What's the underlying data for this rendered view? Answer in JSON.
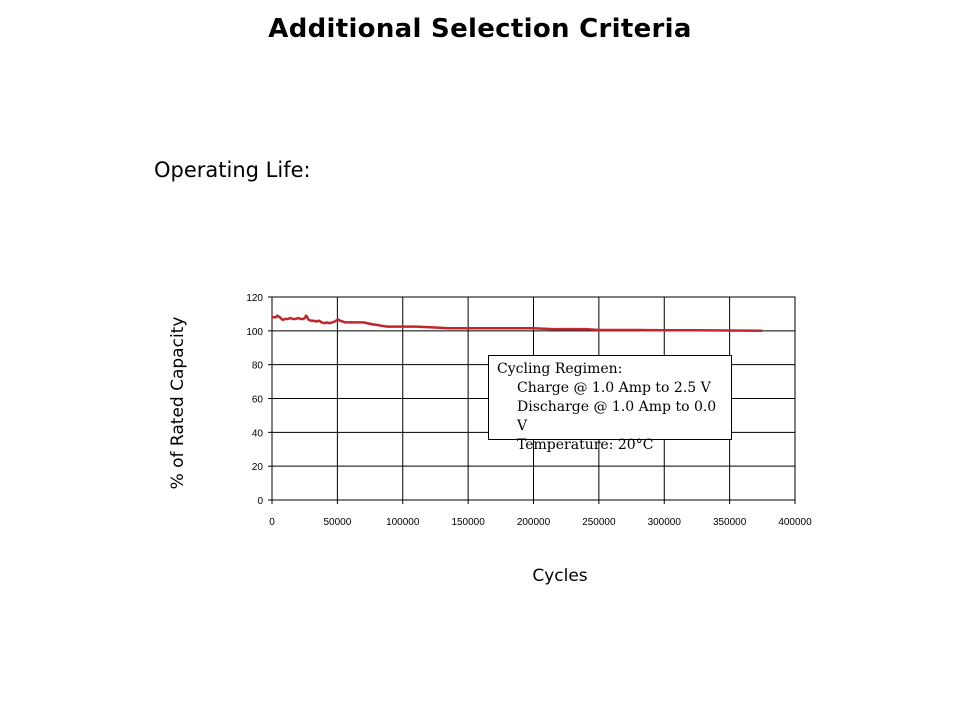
{
  "slide": {
    "title": "Additional Selection Criteria",
    "section_heading": "Operating Life:"
  },
  "chart_data": {
    "type": "line",
    "xlabel": "Cycles",
    "ylabel": "% of Rated Capacity",
    "xlim": [
      0,
      400000
    ],
    "ylim": [
      0,
      120
    ],
    "x_ticks": [
      0,
      50000,
      100000,
      150000,
      200000,
      250000,
      300000,
      350000,
      400000
    ],
    "x_tick_labels": [
      "0",
      "50000",
      "100000",
      "150000",
      "200000",
      "250000",
      "300000",
      "350000",
      "400000"
    ],
    "y_ticks": [
      0,
      20,
      40,
      60,
      80,
      100,
      120
    ],
    "y_tick_labels": [
      "0",
      "20",
      "40",
      "60",
      "80",
      "100",
      "120"
    ],
    "grid": true,
    "line_color": "#c0272d",
    "series": [
      {
        "x": [
          0,
          3000,
          4000,
          6000,
          8000,
          10000,
          12000,
          14000,
          16000,
          18000,
          20000,
          22000,
          24000,
          25500,
          26000,
          27000,
          28000,
          30000,
          32000,
          34000,
          36000,
          38000,
          40000,
          42000,
          44000,
          46000,
          48000,
          50000,
          51000,
          52000,
          54000,
          56000,
          60000,
          70000,
          76000,
          80000,
          84000,
          88000,
          95000,
          110000,
          125000,
          135000,
          150000,
          175000,
          190000,
          200000,
          215000,
          230000,
          240000,
          250000,
          255000,
          270000,
          275000,
          300000,
          325000,
          350000,
          375000
        ],
        "y": [
          108,
          108,
          109,
          108,
          106.5,
          107,
          107,
          107.5,
          107,
          107,
          107.5,
          107,
          107,
          108,
          109,
          108,
          106.5,
          106,
          106,
          105.5,
          106,
          105,
          104.5,
          105,
          104.5,
          105,
          105.5,
          106.5,
          106.5,
          106,
          105.5,
          105,
          105,
          105,
          104,
          103.5,
          103,
          102.5,
          102.5,
          102.5,
          102,
          101.5,
          101.5,
          101.5,
          101.5,
          101.5,
          101,
          101,
          101,
          100.5,
          100.5,
          100.5,
          100.5,
          100.3,
          100.3,
          100.2,
          100
        ]
      }
    ],
    "annotation": {
      "lines": [
        "Cycling Regimen:",
        "Charge @ 1.0 Amp to 2.5 V",
        "Discharge @ 1.0 Amp to 0.0 V",
        "Temperature: 20°C"
      ]
    }
  }
}
